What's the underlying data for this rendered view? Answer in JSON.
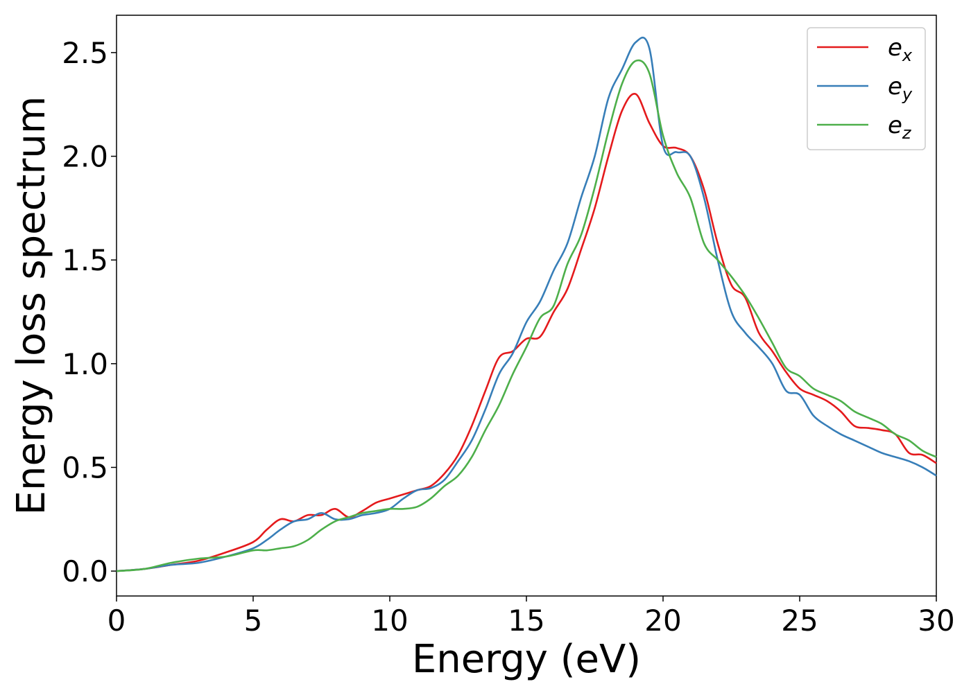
{
  "chart_data": {
    "type": "line",
    "title": "",
    "xlabel": "Energy (eV)",
    "ylabel": "Energy loss spectrum",
    "xlim": [
      0,
      30
    ],
    "ylim": [
      -0.12,
      2.68
    ],
    "xticks": [
      0,
      5,
      10,
      15,
      20,
      25,
      30
    ],
    "yticks": [
      0.0,
      0.5,
      1.0,
      1.5,
      2.0,
      2.5
    ],
    "xtick_labels": [
      "0",
      "5",
      "10",
      "15",
      "20",
      "25",
      "30"
    ],
    "ytick_labels": [
      "0.0",
      "0.5",
      "1.0",
      "1.5",
      "2.0",
      "2.5"
    ],
    "grid": false,
    "legend_position": "top-right",
    "x": [
      0,
      1,
      2,
      3,
      4,
      5,
      5.5,
      6,
      6.5,
      7,
      7.5,
      8,
      8.5,
      9,
      9.5,
      10,
      10.5,
      11,
      11.5,
      12,
      12.5,
      13,
      13.5,
      14,
      14.5,
      15,
      15.5,
      16,
      16.5,
      17,
      17.5,
      18,
      18.5,
      19,
      19.5,
      20,
      20.5,
      21,
      21.5,
      22,
      22.5,
      23,
      23.5,
      24,
      24.5,
      25,
      25.5,
      26,
      26.5,
      27,
      27.5,
      28,
      28.5,
      29,
      29.5,
      30
    ],
    "series": [
      {
        "name": "e",
        "sub": "x",
        "color": "#e41a1c",
        "values": [
          0.0,
          0.01,
          0.03,
          0.05,
          0.09,
          0.14,
          0.2,
          0.25,
          0.24,
          0.27,
          0.27,
          0.3,
          0.26,
          0.29,
          0.33,
          0.35,
          0.37,
          0.39,
          0.41,
          0.47,
          0.56,
          0.7,
          0.87,
          1.03,
          1.06,
          1.12,
          1.13,
          1.25,
          1.36,
          1.55,
          1.75,
          2.0,
          2.22,
          2.3,
          2.16,
          2.05,
          2.04,
          2.0,
          1.84,
          1.58,
          1.38,
          1.32,
          1.15,
          1.06,
          0.96,
          0.88,
          0.85,
          0.82,
          0.77,
          0.7,
          0.69,
          0.68,
          0.66,
          0.57,
          0.56,
          0.52
        ]
      },
      {
        "name": "e",
        "sub": "y",
        "color": "#377eb8",
        "values": [
          0.0,
          0.01,
          0.03,
          0.04,
          0.07,
          0.11,
          0.15,
          0.2,
          0.24,
          0.25,
          0.28,
          0.25,
          0.25,
          0.27,
          0.28,
          0.3,
          0.35,
          0.39,
          0.4,
          0.44,
          0.53,
          0.63,
          0.78,
          0.95,
          1.05,
          1.2,
          1.3,
          1.45,
          1.58,
          1.8,
          2.0,
          2.28,
          2.42,
          2.55,
          2.52,
          2.05,
          2.02,
          2.0,
          1.8,
          1.5,
          1.25,
          1.15,
          1.08,
          1.0,
          0.87,
          0.85,
          0.75,
          0.7,
          0.66,
          0.63,
          0.6,
          0.57,
          0.55,
          0.53,
          0.5,
          0.46
        ]
      },
      {
        "name": "e",
        "sub": "z",
        "color": "#4daf4a",
        "values": [
          0.0,
          0.01,
          0.04,
          0.06,
          0.07,
          0.1,
          0.1,
          0.11,
          0.12,
          0.15,
          0.2,
          0.24,
          0.26,
          0.28,
          0.29,
          0.3,
          0.3,
          0.31,
          0.35,
          0.41,
          0.46,
          0.55,
          0.68,
          0.8,
          0.95,
          1.08,
          1.22,
          1.28,
          1.48,
          1.62,
          1.85,
          2.12,
          2.35,
          2.46,
          2.4,
          2.1,
          1.92,
          1.8,
          1.58,
          1.5,
          1.42,
          1.33,
          1.22,
          1.1,
          0.98,
          0.94,
          0.88,
          0.85,
          0.82,
          0.77,
          0.74,
          0.71,
          0.66,
          0.63,
          0.58,
          0.55
        ]
      }
    ]
  }
}
